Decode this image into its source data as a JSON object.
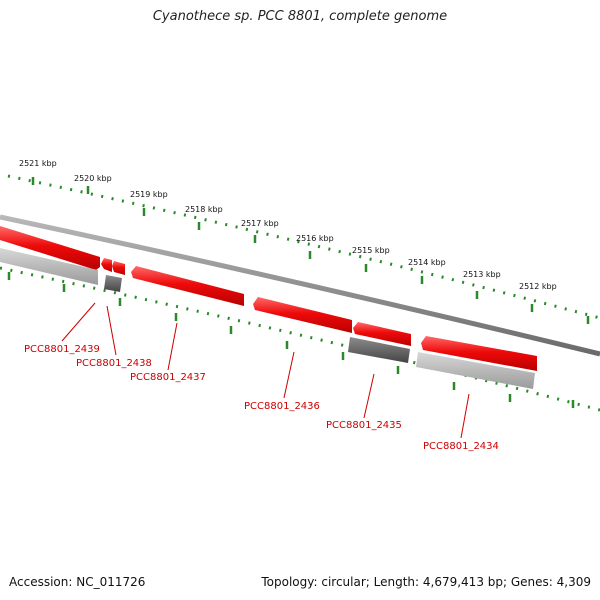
{
  "title": "Cyanothece sp. PCC 8801, complete genome",
  "footer": {
    "accession": "Accession: NC_011726",
    "summary": "Topology: circular; Length: 4,679,413 bp; Genes: 4,309"
  },
  "colors": {
    "forward_gene": "#ee1111",
    "reverse_gene_dark": "#666666",
    "reverse_gene_light": "#bbbbbb",
    "ruler": "#2a8a2a",
    "backbone": "#8a8a8a",
    "label": "#cc0000"
  },
  "ticks": [
    "2521 kbp",
    "2520 kbp",
    "2519 kbp",
    "2518 kbp",
    "2517 kbp",
    "2516 kbp",
    "2515 kbp",
    "2514 kbp",
    "2513 kbp",
    "2512 kbp"
  ],
  "genes": [
    {
      "label": "PCC8801_2439",
      "strand": "forward"
    },
    {
      "label": "PCC8801_2438",
      "strand": "reverse"
    },
    {
      "label": "PCC8801_2437",
      "strand": "forward"
    },
    {
      "label": "PCC8801_2436",
      "strand": "forward"
    },
    {
      "label": "PCC8801_2435",
      "strand": "reverse"
    },
    {
      "label": "PCC8801_2434",
      "strand": "forward"
    }
  ]
}
